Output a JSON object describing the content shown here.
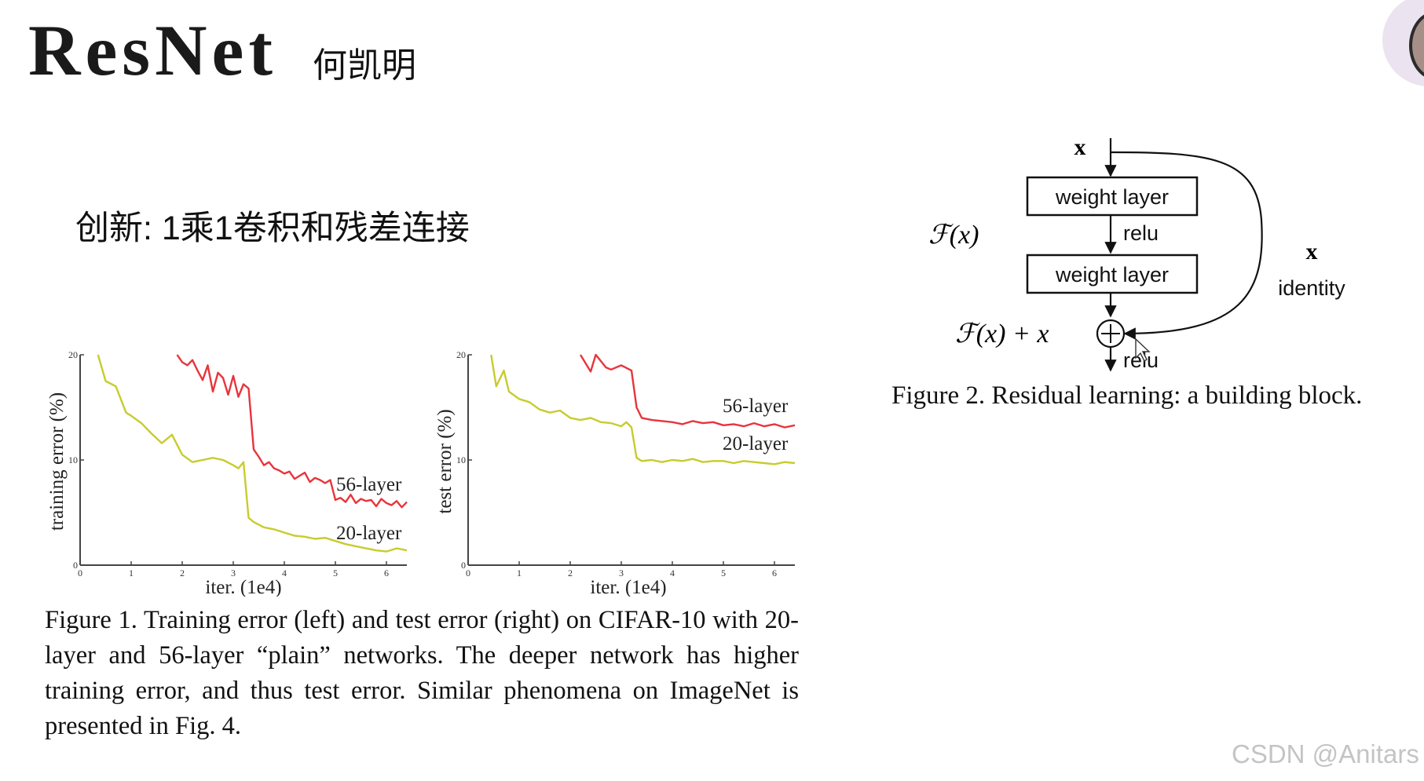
{
  "slide": {
    "title": "ResNet",
    "author": "何凯明",
    "subtitle": "创新: 1乘1卷积和残差连接"
  },
  "figure1": {
    "caption": "Figure 1. Training error (left) and test error (right) on CIFAR-10 with 20-layer and 56-layer “plain” networks. The deeper network has higher training error, and thus test error. Similar phenomena on ImageNet is presented in Fig. 4."
  },
  "chart_data": [
    {
      "type": "line",
      "xlabel": "iter. (1e4)",
      "ylabel": "training error (%)",
      "xlim": [
        0,
        6.4
      ],
      "ylim": [
        0,
        20
      ],
      "xticks": [
        "0",
        "1",
        "2",
        "3",
        "4",
        "5",
        "6"
      ],
      "yticks": [
        "0",
        "10",
        "20"
      ],
      "grid": false,
      "series": [
        {
          "name": "56-layer",
          "color": "#e8343c",
          "x": [
            1.9,
            2.0,
            2.1,
            2.2,
            2.3,
            2.4,
            2.5,
            2.6,
            2.7,
            2.8,
            2.9,
            3.0,
            3.1,
            3.2,
            3.3,
            3.4,
            3.5,
            3.6,
            3.7,
            3.8,
            3.9,
            4.0,
            4.1,
            4.2,
            4.3,
            4.4,
            4.5,
            4.6,
            4.7,
            4.8,
            4.9,
            5.0,
            5.1,
            5.2,
            5.3,
            5.4,
            5.5,
            5.6,
            5.7,
            5.8,
            5.9,
            6.0,
            6.1,
            6.2,
            6.3,
            6.4
          ],
          "y": [
            20.0,
            19.3,
            19.0,
            19.5,
            18.5,
            17.6,
            19.0,
            16.5,
            18.3,
            17.8,
            16.2,
            18.0,
            16.0,
            17.2,
            16.8,
            11.0,
            10.3,
            9.5,
            9.8,
            9.2,
            9.0,
            8.7,
            8.9,
            8.2,
            8.5,
            8.8,
            7.9,
            8.3,
            8.1,
            7.8,
            8.1,
            6.2,
            6.4,
            6.0,
            6.7,
            5.9,
            6.3,
            6.1,
            6.2,
            5.6,
            6.3,
            5.9,
            5.7,
            6.1,
            5.5,
            6.0
          ]
        },
        {
          "name": "20-layer",
          "color": "#c7cc2e",
          "x": [
            0.35,
            0.5,
            0.7,
            0.9,
            1.0,
            1.2,
            1.4,
            1.6,
            1.8,
            2.0,
            2.2,
            2.4,
            2.6,
            2.8,
            3.0,
            3.1,
            3.2,
            3.3,
            3.4,
            3.6,
            3.8,
            4.0,
            4.2,
            4.4,
            4.6,
            4.8,
            5.0,
            5.2,
            5.4,
            5.6,
            5.8,
            6.0,
            6.2,
            6.4
          ],
          "y": [
            20.0,
            17.5,
            17.0,
            14.5,
            14.2,
            13.5,
            12.5,
            11.6,
            12.4,
            10.5,
            9.8,
            10.0,
            10.2,
            10.0,
            9.5,
            9.2,
            9.8,
            4.5,
            4.1,
            3.6,
            3.4,
            3.1,
            2.8,
            2.7,
            2.5,
            2.6,
            2.3,
            2.0,
            1.8,
            1.6,
            1.4,
            1.3,
            1.6,
            1.4
          ]
        }
      ]
    },
    {
      "type": "line",
      "xlabel": "iter. (1e4)",
      "ylabel": "test error (%)",
      "xlim": [
        0,
        6.4
      ],
      "ylim": [
        0,
        20
      ],
      "xticks": [
        "0",
        "1",
        "2",
        "3",
        "4",
        "5",
        "6"
      ],
      "yticks": [
        "0",
        "10",
        "20"
      ],
      "grid": false,
      "series": [
        {
          "name": "56-layer",
          "color": "#e8343c",
          "x": [
            2.2,
            2.4,
            2.5,
            2.7,
            2.8,
            3.0,
            3.2,
            3.3,
            3.4,
            3.6,
            3.8,
            4.0,
            4.2,
            4.4,
            4.6,
            4.8,
            5.0,
            5.2,
            5.4,
            5.6,
            5.8,
            6.0,
            6.2,
            6.4
          ],
          "y": [
            20.0,
            18.4,
            20.0,
            18.8,
            18.6,
            19.0,
            18.5,
            15.0,
            14.0,
            13.8,
            13.7,
            13.6,
            13.4,
            13.7,
            13.5,
            13.6,
            13.3,
            13.4,
            13.2,
            13.5,
            13.2,
            13.4,
            13.1,
            13.3
          ]
        },
        {
          "name": "20-layer",
          "color": "#c7cc2e",
          "x": [
            0.45,
            0.55,
            0.7,
            0.8,
            1.0,
            1.2,
            1.4,
            1.6,
            1.8,
            2.0,
            2.2,
            2.4,
            2.6,
            2.8,
            3.0,
            3.1,
            3.2,
            3.3,
            3.4,
            3.6,
            3.8,
            4.0,
            4.2,
            4.4,
            4.6,
            4.8,
            5.0,
            5.2,
            5.4,
            5.6,
            5.8,
            6.0,
            6.2,
            6.4
          ],
          "y": [
            20.0,
            17.0,
            18.5,
            16.5,
            15.8,
            15.5,
            14.8,
            14.5,
            14.7,
            14.0,
            13.8,
            14.0,
            13.6,
            13.5,
            13.2,
            13.6,
            13.1,
            10.2,
            9.9,
            10.0,
            9.8,
            10.0,
            9.9,
            10.1,
            9.8,
            9.9,
            9.9,
            9.7,
            9.9,
            9.8,
            9.7,
            9.6,
            9.8,
            9.7
          ]
        }
      ]
    }
  ],
  "figure2": {
    "input_label": "x",
    "box1": "weight layer",
    "relu1": "relu",
    "box2": "weight layer",
    "fx_label": "ℱ(x)",
    "sum_label": "ℱ(x) + x",
    "relu2": "relu",
    "skip_label": "x",
    "identity_label": "identity",
    "caption": "Figure 2. Residual learning: a building block."
  },
  "watermark": "CSDN @Anitars"
}
